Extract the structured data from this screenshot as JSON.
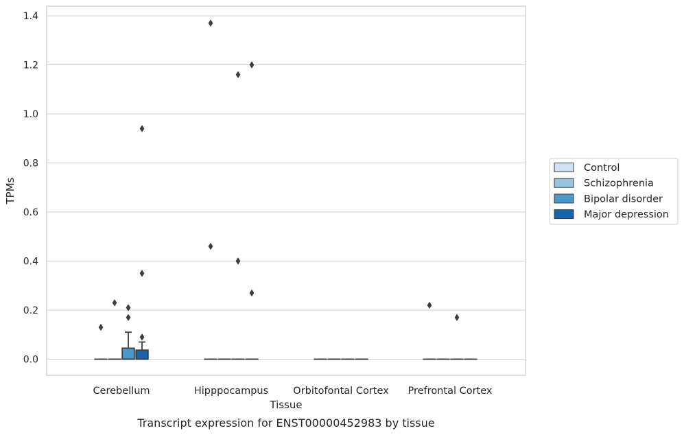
{
  "chart_data": {
    "type": "boxplot",
    "title": "Transcript expression for ENST00000452983 by tissue",
    "xlabel": "Tissue",
    "ylabel": "TPMs",
    "ylim": [
      -0.07,
      1.44
    ],
    "yticks": [
      0.0,
      0.2,
      0.4,
      0.6,
      0.8,
      1.0,
      1.2,
      1.4
    ],
    "ytick_labels": [
      "0.0",
      "0.2",
      "0.4",
      "0.6",
      "0.8",
      "1.0",
      "1.2",
      "1.4"
    ],
    "grid": "horizontal",
    "legend_position": "right",
    "categories": [
      "Cerebellum",
      "Hipppocampus",
      "Orbitofontal Cortex",
      "Prefrontal Cortex"
    ],
    "series": [
      {
        "name": "Control",
        "color": "#d0e1f2",
        "boxes": [
          {
            "q1": 0,
            "median": 0,
            "q3": 0,
            "whisker_low": 0,
            "whisker_high": 0,
            "outliers": [
              0.13
            ]
          },
          {
            "q1": 0,
            "median": 0,
            "q3": 0,
            "whisker_low": 0,
            "whisker_high": 0,
            "outliers": [
              1.37,
              0.46
            ]
          },
          {
            "q1": 0,
            "median": 0,
            "q3": 0,
            "whisker_low": 0,
            "whisker_high": 0,
            "outliers": []
          },
          {
            "q1": 0,
            "median": 0,
            "q3": 0,
            "whisker_low": 0,
            "whisker_high": 0,
            "outliers": [
              0.22
            ]
          }
        ]
      },
      {
        "name": "Schizophrenia",
        "color": "#94c4df",
        "boxes": [
          {
            "q1": 0,
            "median": 0,
            "q3": 0,
            "whisker_low": 0,
            "whisker_high": 0,
            "outliers": [
              0.23
            ]
          },
          {
            "q1": 0,
            "median": 0,
            "q3": 0,
            "whisker_low": 0,
            "whisker_high": 0,
            "outliers": []
          },
          {
            "q1": 0,
            "median": 0,
            "q3": 0,
            "whisker_low": 0,
            "whisker_high": 0,
            "outliers": []
          },
          {
            "q1": 0,
            "median": 0,
            "q3": 0,
            "whisker_low": 0,
            "whisker_high": 0,
            "outliers": []
          }
        ]
      },
      {
        "name": "Bipolar disorder",
        "color": "#4a98c9",
        "boxes": [
          {
            "q1": 0,
            "median": 0,
            "q3": 0.045,
            "whisker_low": 0,
            "whisker_high": 0.11,
            "outliers": [
              0.21,
              0.17
            ]
          },
          {
            "q1": 0,
            "median": 0,
            "q3": 0,
            "whisker_low": 0,
            "whisker_high": 0,
            "outliers": [
              1.16,
              0.4
            ]
          },
          {
            "q1": 0,
            "median": 0,
            "q3": 0,
            "whisker_low": 0,
            "whisker_high": 0,
            "outliers": []
          },
          {
            "q1": 0,
            "median": 0,
            "q3": 0,
            "whisker_low": 0,
            "whisker_high": 0,
            "outliers": [
              0.17
            ]
          }
        ]
      },
      {
        "name": "Major depression",
        "color": "#1764ab",
        "boxes": [
          {
            "q1": 0,
            "median": 0,
            "q3": 0.037,
            "whisker_low": 0,
            "whisker_high": 0.07,
            "outliers": [
              0.94,
              0.35,
              0.09
            ]
          },
          {
            "q1": 0,
            "median": 0,
            "q3": 0,
            "whisker_low": 0,
            "whisker_high": 0,
            "outliers": [
              1.2,
              0.27
            ]
          },
          {
            "q1": 0,
            "median": 0,
            "q3": 0,
            "whisker_low": 0,
            "whisker_high": 0,
            "outliers": []
          },
          {
            "q1": 0,
            "median": 0,
            "q3": 0,
            "whisker_low": 0,
            "whisker_high": 0,
            "outliers": []
          }
        ]
      }
    ]
  },
  "colors": {
    "grid": "#cccccc",
    "frame": "#cccccc",
    "box_edge": "#3d3d3d",
    "text": "#262626"
  }
}
